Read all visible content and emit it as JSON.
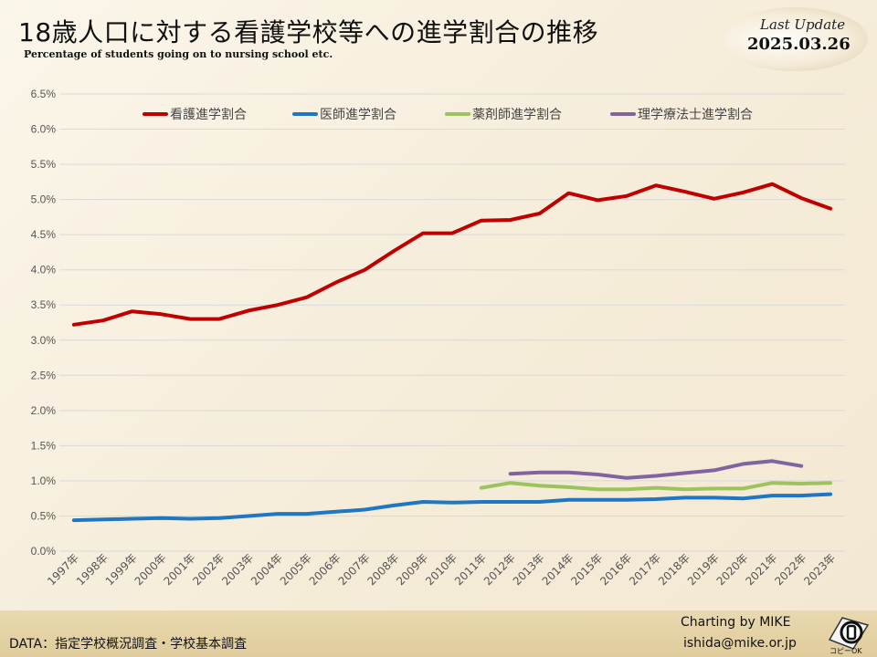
{
  "header": {
    "title": "18歳人口に対する看護学校等への進学割合の推移",
    "subtitle": "Percentage of students going on to nursing school etc.",
    "update_label": "Last Update",
    "update_date": "2025.03.26"
  },
  "footer": {
    "data_source": "DATA：指定学校概況調査・学校基本調査",
    "credit_line1": "Charting by MIKE",
    "credit_line2": "ishida@mike.or.jp",
    "logo_text": "コピーOK"
  },
  "colors": {
    "nursing": "#c00000",
    "medical": "#1f77c4",
    "pharmacy": "#9dc35f",
    "physio": "#8064a2",
    "grid": "#d9d9d9"
  },
  "chart_data": {
    "type": "line",
    "categories": [
      "1997年",
      "1998年",
      "1999年",
      "2000年",
      "2001年",
      "2002年",
      "2003年",
      "2004年",
      "2005年",
      "2006年",
      "2007年",
      "2008年",
      "2009年",
      "2010年",
      "2011年",
      "2012年",
      "2013年",
      "2014年",
      "2015年",
      "2016年",
      "2017年",
      "2018年",
      "2019年",
      "2020年",
      "2021年",
      "2022年",
      "2023年"
    ],
    "ylim": [
      0,
      6.5
    ],
    "y_ticks": [
      "0.0%",
      "0.5%",
      "1.0%",
      "1.5%",
      "2.0%",
      "2.5%",
      "3.0%",
      "3.5%",
      "4.0%",
      "4.5%",
      "5.0%",
      "5.5%",
      "6.0%",
      "6.5%"
    ],
    "grid": true,
    "legend_position": "top",
    "series": [
      {
        "name": "看護進学割合",
        "color_key": "nursing",
        "values": [
          3.22,
          3.28,
          3.41,
          3.37,
          3.3,
          3.3,
          3.42,
          3.5,
          3.61,
          3.82,
          4.0,
          4.27,
          4.52,
          4.52,
          4.7,
          4.71,
          4.8,
          5.09,
          4.99,
          5.05,
          5.2,
          5.11,
          5.01,
          5.1,
          5.22,
          5.02,
          4.87
        ]
      },
      {
        "name": "医師進学割合",
        "color_key": "medical",
        "values": [
          0.44,
          0.45,
          0.46,
          0.47,
          0.46,
          0.47,
          0.5,
          0.53,
          0.53,
          0.56,
          0.59,
          0.65,
          0.7,
          0.69,
          0.7,
          0.7,
          0.7,
          0.73,
          0.73,
          0.73,
          0.74,
          0.76,
          0.76,
          0.75,
          0.79,
          0.79,
          0.81
        ]
      },
      {
        "name": "薬剤師進学割合",
        "color_key": "pharmacy",
        "values": [
          null,
          null,
          null,
          null,
          null,
          null,
          null,
          null,
          null,
          null,
          null,
          null,
          null,
          null,
          0.9,
          0.97,
          0.93,
          0.91,
          0.88,
          0.88,
          0.9,
          0.88,
          0.89,
          0.89,
          0.97,
          0.96,
          0.97
        ]
      },
      {
        "name": "理学療法士進学割合",
        "color_key": "physio",
        "values": [
          null,
          null,
          null,
          null,
          null,
          null,
          null,
          null,
          null,
          null,
          null,
          null,
          null,
          null,
          null,
          1.1,
          1.12,
          1.12,
          1.09,
          1.04,
          1.07,
          1.11,
          1.15,
          1.24,
          1.28,
          1.21,
          null
        ]
      }
    ]
  }
}
